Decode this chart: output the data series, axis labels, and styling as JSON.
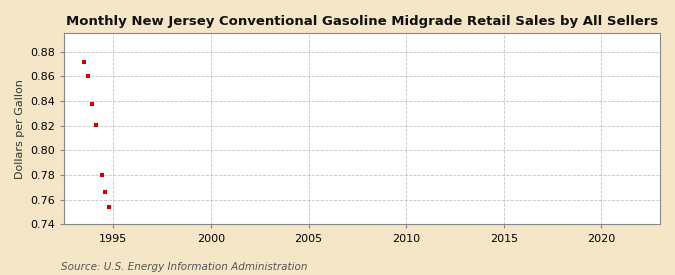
{
  "title": "Monthly New Jersey Conventional Gasoline Midgrade Retail Sales by All Sellers",
  "ylabel": "Dollars per Gallon",
  "source": "Source: U.S. Energy Information Administration",
  "figure_background_color": "#f5e6c8",
  "plot_background_color": "#ffffff",
  "grid_color": "#aaaaaa",
  "marker_color": "#cc0000",
  "spine_color": "#888888",
  "xlim": [
    1992.5,
    2023
  ],
  "ylim": [
    0.74,
    0.895
  ],
  "xticks": [
    1995,
    2000,
    2005,
    2010,
    2015,
    2020
  ],
  "yticks": [
    0.74,
    0.76,
    0.78,
    0.8,
    0.82,
    0.84,
    0.86,
    0.88
  ],
  "x_data": [
    1993.5,
    1993.7,
    1993.9,
    1994.1,
    1994.4,
    1994.6,
    1994.8
  ],
  "y_data": [
    0.872,
    0.86,
    0.838,
    0.821,
    0.78,
    0.766,
    0.754
  ],
  "title_fontsize": 9.5,
  "label_fontsize": 8,
  "tick_fontsize": 8,
  "source_fontsize": 7.5
}
